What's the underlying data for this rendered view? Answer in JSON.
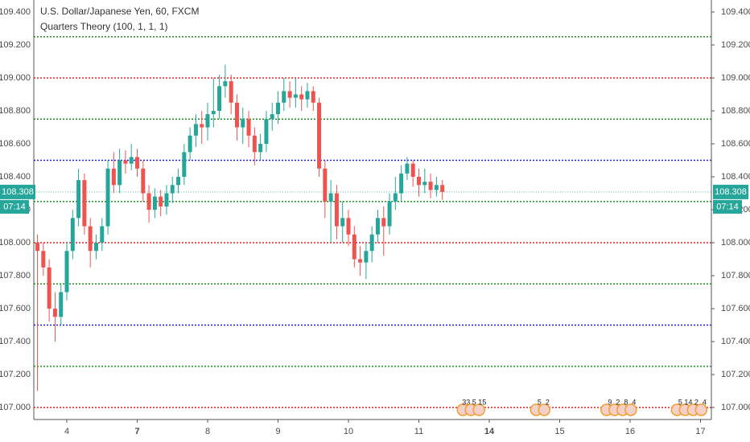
{
  "chart_data": {
    "type": "candlestick",
    "title": "U.S. Dollar/Japanese Yen, 60, FXCM",
    "subtitle": "Quarters Theory (100, 1, 1, 1)",
    "up_color": "#26a69a",
    "down_color": "#ef5350",
    "x": [
      -10,
      -8,
      -6,
      -4,
      -2,
      0,
      2,
      4,
      6,
      8,
      10,
      12,
      14,
      16,
      18,
      20,
      22,
      24,
      26,
      28,
      30,
      32,
      34,
      36,
      38,
      40,
      42,
      44,
      46,
      48,
      50,
      52,
      54,
      56,
      58,
      60,
      62,
      64,
      66,
      68,
      70,
      72,
      74,
      76,
      78,
      80,
      82,
      84,
      86,
      88,
      90,
      92,
      94,
      96,
      98,
      100,
      102,
      104,
      106,
      108,
      110,
      112,
      114,
      116,
      118,
      120,
      122,
      124,
      126,
      128
    ],
    "open": [
      108.0,
      107.95,
      107.85,
      107.6,
      107.55,
      107.7,
      107.95,
      108.15,
      108.38,
      108.1,
      107.95,
      108.0,
      108.1,
      108.45,
      108.35,
      108.5,
      108.48,
      108.52,
      108.45,
      108.3,
      108.2,
      108.28,
      108.22,
      108.3,
      108.35,
      108.4,
      108.55,
      108.65,
      108.72,
      108.7,
      108.78,
      108.8,
      108.95,
      108.98,
      108.85,
      108.7,
      108.75,
      108.65,
      108.55,
      108.6,
      108.75,
      108.78,
      108.85,
      108.92,
      108.88,
      108.9,
      108.87,
      108.92,
      108.85,
      108.45,
      108.25,
      108.3,
      108.1,
      108.15,
      108.05,
      107.9,
      107.88,
      107.95,
      108.05,
      108.15,
      108.1,
      108.25,
      108.3,
      108.42,
      108.48,
      108.4,
      108.35,
      108.37,
      108.32,
      108.35
    ],
    "high": [
      108.05,
      108.0,
      107.9,
      107.7,
      107.75,
      108.0,
      108.2,
      108.45,
      108.42,
      108.15,
      108.05,
      108.15,
      108.5,
      108.55,
      108.57,
      108.56,
      108.6,
      108.57,
      108.5,
      108.35,
      108.33,
      108.32,
      108.35,
      108.4,
      108.45,
      108.6,
      108.7,
      108.78,
      108.8,
      108.85,
      109.0,
      109.02,
      109.08,
      109.02,
      108.9,
      108.82,
      108.8,
      108.7,
      108.66,
      108.8,
      108.85,
      108.92,
      109.0,
      108.98,
      109.0,
      108.95,
      108.97,
      108.95,
      108.88,
      108.5,
      108.38,
      108.35,
      108.25,
      108.2,
      108.1,
      107.98,
      108.0,
      108.1,
      108.2,
      108.22,
      108.3,
      108.4,
      108.47,
      108.52,
      108.5,
      108.45,
      108.45,
      108.42,
      108.4,
      108.38
    ],
    "low": [
      107.1,
      107.8,
      107.52,
      107.4,
      107.5,
      107.65,
      107.9,
      108.1,
      108.05,
      107.85,
      107.9,
      107.95,
      108.05,
      108.3,
      108.3,
      108.42,
      108.44,
      108.4,
      108.25,
      108.12,
      108.15,
      108.16,
      108.17,
      108.24,
      108.3,
      108.35,
      108.5,
      108.58,
      108.6,
      108.62,
      108.7,
      108.75,
      108.88,
      108.78,
      108.62,
      108.6,
      108.58,
      108.47,
      108.5,
      108.55,
      108.68,
      108.72,
      108.8,
      108.82,
      108.82,
      108.8,
      108.82,
      108.8,
      108.4,
      108.15,
      108.0,
      108.02,
      108.0,
      107.98,
      107.85,
      107.8,
      107.78,
      107.88,
      108.0,
      107.92,
      108.05,
      108.2,
      108.25,
      108.38,
      108.34,
      108.28,
      108.3,
      108.27,
      108.28,
      108.26
    ],
    "close": [
      107.95,
      107.85,
      107.6,
      107.55,
      107.7,
      107.95,
      108.15,
      108.38,
      108.1,
      107.95,
      108.0,
      108.1,
      108.45,
      108.35,
      108.5,
      108.48,
      108.52,
      108.45,
      108.3,
      108.2,
      108.28,
      108.22,
      108.3,
      108.35,
      108.4,
      108.55,
      108.65,
      108.72,
      108.7,
      108.78,
      108.8,
      108.95,
      108.98,
      108.85,
      108.7,
      108.75,
      108.65,
      108.55,
      108.6,
      108.75,
      108.78,
      108.85,
      108.92,
      108.88,
      108.9,
      108.87,
      108.92,
      108.85,
      108.45,
      108.25,
      108.3,
      108.1,
      108.15,
      108.05,
      107.9,
      107.88,
      107.95,
      108.05,
      108.15,
      108.1,
      108.25,
      108.3,
      108.42,
      108.48,
      108.4,
      108.35,
      108.37,
      108.32,
      108.35,
      108.308
    ],
    "xlim": [
      -11.25,
      219.7
    ],
    "xticks": [
      {
        "value": 0,
        "label": "4"
      },
      {
        "value": 24,
        "label": "7"
      },
      {
        "value": 48,
        "label": "8"
      },
      {
        "value": 72,
        "label": "9"
      },
      {
        "value": 96,
        "label": "10"
      },
      {
        "value": 120,
        "label": "11"
      },
      {
        "value": 144,
        "label": "14"
      },
      {
        "value": 168,
        "label": "15"
      },
      {
        "value": 192,
        "label": "16"
      },
      {
        "value": 216,
        "label": "17"
      }
    ],
    "ylim": [
      106.937,
      109.473
    ],
    "yticks": [
      {
        "value": 107.0,
        "label": "107.000"
      },
      {
        "value": 107.2,
        "label": "107.200"
      },
      {
        "value": 107.4,
        "label": "107.400"
      },
      {
        "value": 107.6,
        "label": "107.600"
      },
      {
        "value": 107.8,
        "label": "107.800"
      },
      {
        "value": 108.0,
        "label": "108.000"
      },
      {
        "value": 108.2,
        "label": "108.200"
      },
      {
        "value": 108.4,
        "label": "108.400"
      },
      {
        "value": 108.6,
        "label": "108.600"
      },
      {
        "value": 108.8,
        "label": "108.800"
      },
      {
        "value": 109.0,
        "label": "109.000"
      },
      {
        "value": 109.2,
        "label": "109.200"
      },
      {
        "value": 109.4,
        "label": "109.400"
      }
    ],
    "levels": [
      {
        "value": 109.25,
        "color": "#1e8c1e"
      },
      {
        "value": 109.0,
        "color": "#e02020"
      },
      {
        "value": 108.75,
        "color": "#1e8c1e"
      },
      {
        "value": 108.5,
        "color": "#2020d0"
      },
      {
        "value": 108.25,
        "color": "#1e8c1e"
      },
      {
        "value": 108.0,
        "color": "#e02020"
      },
      {
        "value": 107.75,
        "color": "#1e8c1e"
      },
      {
        "value": 107.5,
        "color": "#2020d0"
      },
      {
        "value": 107.25,
        "color": "#1e8c1e"
      },
      {
        "value": 107.0,
        "color": "#e02020"
      }
    ],
    "last_price": {
      "value": 108.308,
      "label": "108.308"
    },
    "countdown": "07:14",
    "price_tag_color": "#26a69a",
    "events": [
      {
        "x": 135,
        "labels": [
          "33",
          "5",
          "15"
        ]
      },
      {
        "x": 160,
        "labels": [
          "5",
          "2"
        ]
      },
      {
        "x": 184,
        "labels": [
          "9",
          "2",
          "8",
          "4"
        ]
      },
      {
        "x": 208,
        "labels": [
          "5",
          "14",
          "2",
          "4"
        ]
      }
    ]
  }
}
